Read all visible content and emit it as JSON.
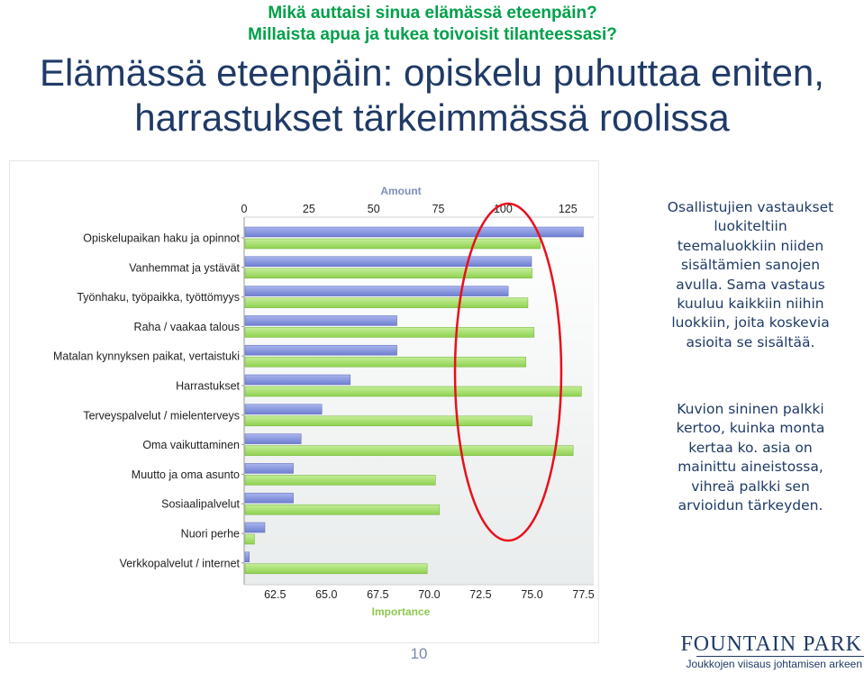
{
  "header": {
    "question_line1": "Mikä auttaisi sinua elämässä eteenpäin?",
    "question_line2": "Millaista apua ja tukea toivoisit tilanteessasi?",
    "title_line1": "Elämässä eteenpäin: opiskelu puhuttaa eniten,",
    "title_line2": "harrastukset tärkeimmässä roolissa"
  },
  "chart_data": {
    "type": "bar",
    "categories": [
      "Opiskelupaikan haku ja opinnot",
      "Vanhemmat ja ystävät",
      "Työnhaku, työpaikka, työttömyys",
      "Raha / vaakaa talous",
      "Matalan kynnyksen paikat, vertaistuki",
      "Harrastukset",
      "Terveyspalvelut / mielenterveys",
      "Oma vaikuttaminen",
      "Muutto ja oma asunto",
      "Sosiaalipalvelut",
      "Nuori perhe",
      "Verkkopalvelut / internet"
    ],
    "series": [
      {
        "name": "Amount",
        "color": "#6f7fd0",
        "axis": "top",
        "values": [
          131,
          111,
          102,
          59,
          59,
          41,
          30,
          22,
          19,
          19,
          8,
          2
        ]
      },
      {
        "name": "Importance",
        "color": "#8fd14f",
        "axis": "bottom",
        "values": [
          75.4,
          75.0,
          74.8,
          75.1,
          74.7,
          77.4,
          75.0,
          77.0,
          70.3,
          70.5,
          61.5,
          69.9
        ]
      }
    ],
    "top_axis": {
      "label": "Amount",
      "ticks": [
        0,
        25,
        50,
        75,
        100,
        125
      ],
      "range": [
        0,
        135
      ]
    },
    "bottom_axis": {
      "label": "Importance",
      "ticks": [
        "62.5",
        "65.0",
        "67.5",
        "70.0",
        "72.5",
        "75.0",
        "77.5"
      ],
      "range": [
        61.0,
        78.0
      ]
    },
    "annotation": "red-ellipse-highlight"
  },
  "notes": {
    "note1": "Osallistujien vastaukset luokiteltiin teemaluokkiin niiden sisältämien sanojen avulla. Sama vastaus kuuluu kaikkiin niihin luokkiin, joita koskevia asioita se sisältää.",
    "note2": "Kuvion sininen palkki kertoo, kuinka monta kertaa ko. asia on mainittu aineistossa, vihreä palkki sen arvioidun tärkeyden."
  },
  "footer": {
    "page_number": "10",
    "logo_main": "FOUNTAIN PARK",
    "logo_tagline": "Joukkojen viisaus johtamisen arkeen"
  },
  "colors": {
    "title": "#1f3a66",
    "question": "#00a04a",
    "amount_bar": "#6f7fd0",
    "importance_bar": "#8fd14f",
    "highlight": "#e8101a"
  }
}
